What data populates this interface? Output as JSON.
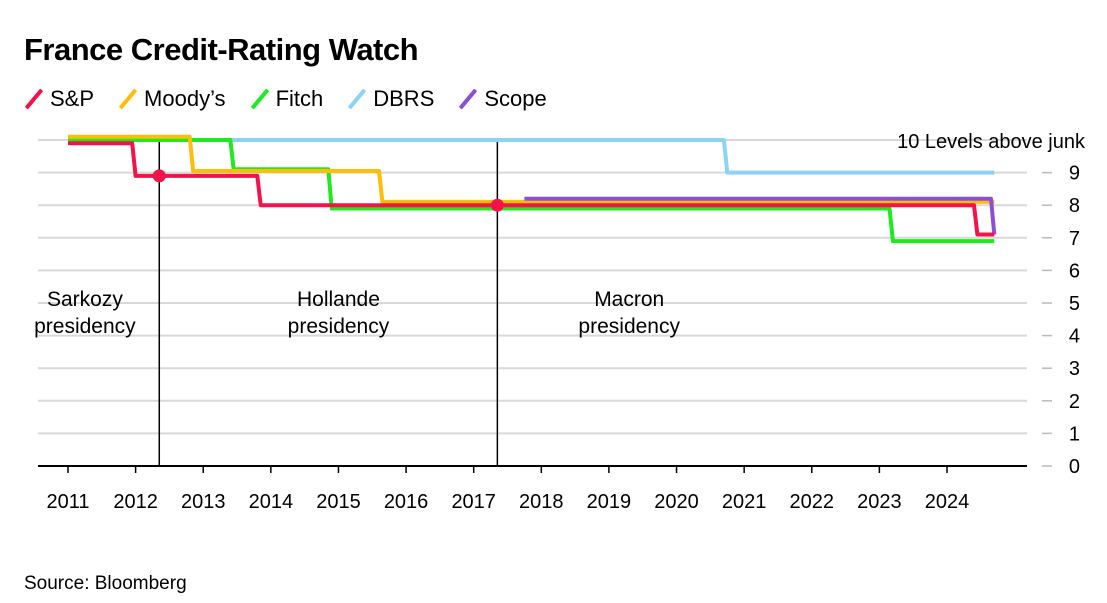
{
  "title": "France Credit-Rating Watch",
  "source": "Source: Bloomberg",
  "chart_data": {
    "type": "line",
    "title": "France Credit-Rating Watch",
    "xlabel": "",
    "ylabel": "",
    "ylim": [
      0,
      10
    ],
    "xlim": [
      2010.5,
      2025.0
    ],
    "x_ticks": [
      "2011",
      "2012",
      "2013",
      "2014",
      "2015",
      "2016",
      "2017",
      "2018",
      "2019",
      "2020",
      "2021",
      "2022",
      "2023",
      "2024"
    ],
    "y_ticks": [
      "0",
      "1",
      "2",
      "3",
      "4",
      "5",
      "6",
      "7",
      "8",
      "9"
    ],
    "top_label": "10 Levels above junk",
    "grid": true,
    "legend_position": "top-left",
    "series": [
      {
        "name": "DBRS",
        "color": "#8dd3f7",
        "points": [
          [
            2011.0,
            10
          ],
          [
            2020.7,
            10
          ],
          [
            2020.75,
            9
          ],
          [
            2024.7,
            9
          ]
        ]
      },
      {
        "name": "Fitch",
        "color": "#1fe91f",
        "points": [
          [
            2011.0,
            10
          ],
          [
            2013.4,
            10
          ],
          [
            2013.45,
            9.1
          ],
          [
            2014.85,
            9.1
          ],
          [
            2014.9,
            7.9
          ],
          [
            2023.15,
            7.9
          ],
          [
            2023.2,
            6.9
          ],
          [
            2024.7,
            6.9
          ]
        ]
      },
      {
        "name": "Moody's",
        "color": "#ffbd0a",
        "points": [
          [
            2011.0,
            10.1
          ],
          [
            2012.8,
            10.1
          ],
          [
            2012.85,
            9.05
          ],
          [
            2015.6,
            9.05
          ],
          [
            2015.65,
            8.1
          ],
          [
            2024.7,
            8.1
          ]
        ]
      },
      {
        "name": "Scope",
        "color": "#8d4ed6",
        "points": [
          [
            2017.75,
            8.2
          ],
          [
            2024.65,
            8.2
          ],
          [
            2024.7,
            7.1
          ]
        ]
      },
      {
        "name": "S&P",
        "color": "#f4124a",
        "points": [
          [
            2011.0,
            9.9
          ],
          [
            2011.95,
            9.9
          ],
          [
            2012.0,
            8.9
          ],
          [
            2013.8,
            8.9
          ],
          [
            2013.85,
            8.0
          ],
          [
            2024.4,
            8.0
          ],
          [
            2024.45,
            7.1
          ],
          [
            2024.7,
            7.1
          ]
        ]
      }
    ],
    "annotations": [
      {
        "label_lines": [
          "Sarkozy",
          "presidency"
        ],
        "x": 2011.25
      },
      {
        "label_lines": [
          "Hollande",
          "presidency"
        ],
        "x": 2015.0
      },
      {
        "label_lines": [
          "Macron",
          "presidency"
        ],
        "x": 2019.3
      }
    ],
    "events": [
      {
        "x": 2012.35,
        "y": 8.9
      },
      {
        "x": 2017.35,
        "y": 8.0
      }
    ]
  },
  "legend": [
    {
      "label": "S&P",
      "color": "#f4124a"
    },
    {
      "label": "Moody’s",
      "color": "#ffbd0a"
    },
    {
      "label": "Fitch",
      "color": "#1fe91f"
    },
    {
      "label": "DBRS",
      "color": "#8dd3f7"
    },
    {
      "label": "Scope",
      "color": "#8d4ed6"
    }
  ]
}
